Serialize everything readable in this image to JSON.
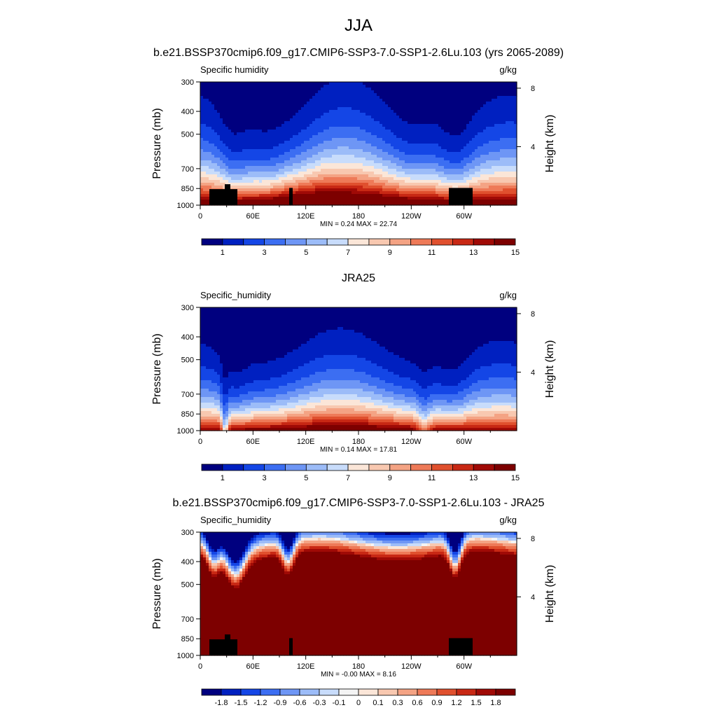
{
  "figure": {
    "title": "JJA"
  },
  "colors": {
    "abs": [
      "#00007f",
      "#0020c0",
      "#1446e6",
      "#3c6ef2",
      "#6e96f5",
      "#9cbcf8",
      "#c8dcfb",
      "#fbe6d8",
      "#f8c8b0",
      "#f4a384",
      "#ee7a58",
      "#e0502e",
      "#c82814",
      "#a00a06",
      "#7d0000"
    ],
    "diff": [
      "#00007f",
      "#0020c0",
      "#1446e6",
      "#3c6ef2",
      "#6e96f5",
      "#9cbcf8",
      "#c8dcfb",
      "#f4f4f4",
      "#fbe6d8",
      "#f8c8b0",
      "#f4a384",
      "#ee7a58",
      "#e0502e",
      "#c82814",
      "#a00a06",
      "#7d0000"
    ],
    "topography": "#000000"
  },
  "panels": [
    {
      "title": "b.e21.BSSP370cmip6.f09_g17.CMIP6-SSP3-7.0-SSP1-2.6Lu.103 (yrs 2065-2089)",
      "left_label": "Specific humidity",
      "units": "g/kg",
      "ylabel_left": "Pressure (mb)",
      "ylabel_right": "Height (km)",
      "stats": "MIN =   0.24  MAX =  22.74",
      "colorbar_ticks": [
        "1",
        "3",
        "5",
        "7",
        "9",
        "11",
        "13",
        "15"
      ],
      "field": "model"
    },
    {
      "title": "JRA25",
      "left_label": "Specific_humidity",
      "units": "g/kg",
      "ylabel_left": "Pressure (mb)",
      "ylabel_right": "Height (km)",
      "stats": "MIN =   0.14  MAX =  17.81",
      "colorbar_ticks": [
        "1",
        "3",
        "5",
        "7",
        "9",
        "11",
        "13",
        "15"
      ],
      "field": "obs"
    },
    {
      "title": "b.e21.BSSP370cmip6.f09_g17.CMIP6-SSP3-7.0-SSP1-2.6Lu.103 - JRA25",
      "left_label": "Specific_humidity",
      "units": "g/kg",
      "ylabel_left": "Pressure (mb)",
      "ylabel_right": "Height (km)",
      "stats": "MIN =  -0.00  MAX =   8.16",
      "colorbar_ticks": [
        "-1.8",
        "-1.5",
        "-1.2",
        "-0.9",
        "-0.6",
        "-0.3",
        "-0.1",
        "0",
        "0.1",
        "0.3",
        "0.6",
        "0.9",
        "1.2",
        "1.5",
        "1.8"
      ],
      "field": "diff"
    }
  ],
  "chart_data": [
    {
      "type": "heatmap",
      "title": "b.e21.BSSP370cmip6.f09_g17.CMIP6-SSP3-7.0-SSP1-2.6Lu.103 (yrs 2065-2089)",
      "variable": "Specific humidity",
      "units": "g/kg",
      "x_ticks": [
        "0",
        "60E",
        "120E",
        "180",
        "120W",
        "60W"
      ],
      "x_tick_values": [
        0,
        60,
        120,
        180,
        240,
        300
      ],
      "xlim": [
        0,
        360
      ],
      "y_ticks": [
        300,
        400,
        500,
        700,
        850,
        1000
      ],
      "ylim": [
        1000,
        300
      ],
      "y_log": true,
      "height_ticks_km": [
        8,
        4
      ],
      "levels": [
        1,
        2,
        3,
        4,
        5,
        6,
        7,
        8,
        9,
        10,
        11,
        12,
        13,
        14,
        15
      ],
      "min": 0.24,
      "max": 22.74
    },
    {
      "type": "heatmap",
      "title": "JRA25",
      "variable": "Specific_humidity",
      "units": "g/kg",
      "x_ticks": [
        "0",
        "60E",
        "120E",
        "180",
        "120W",
        "60W"
      ],
      "x_tick_values": [
        0,
        60,
        120,
        180,
        240,
        300
      ],
      "xlim": [
        0,
        360
      ],
      "y_ticks": [
        300,
        400,
        500,
        700,
        850,
        1000
      ],
      "ylim": [
        1000,
        300
      ],
      "y_log": true,
      "height_ticks_km": [
        8,
        4
      ],
      "levels": [
        1,
        2,
        3,
        4,
        5,
        6,
        7,
        8,
        9,
        10,
        11,
        12,
        13,
        14,
        15
      ],
      "min": 0.14,
      "max": 17.81
    },
    {
      "type": "heatmap",
      "title": "b.e21.BSSP370cmip6.f09_g17.CMIP6-SSP3-7.0-SSP1-2.6Lu.103 - JRA25",
      "variable": "Specific_humidity",
      "units": "g/kg",
      "x_ticks": [
        "0",
        "60E",
        "120E",
        "180",
        "120W",
        "60W"
      ],
      "x_tick_values": [
        0,
        60,
        120,
        180,
        240,
        300
      ],
      "xlim": [
        0,
        360
      ],
      "y_ticks": [
        300,
        400,
        500,
        700,
        850,
        1000
      ],
      "ylim": [
        1000,
        300
      ],
      "y_log": true,
      "height_ticks_km": [
        8,
        4
      ],
      "levels": [
        -1.8,
        -1.5,
        -1.2,
        -0.9,
        -0.6,
        -0.3,
        -0.1,
        0,
        0.1,
        0.3,
        0.6,
        0.9,
        1.2,
        1.5,
        1.8
      ],
      "min": -0.0,
      "max": 8.16
    }
  ]
}
